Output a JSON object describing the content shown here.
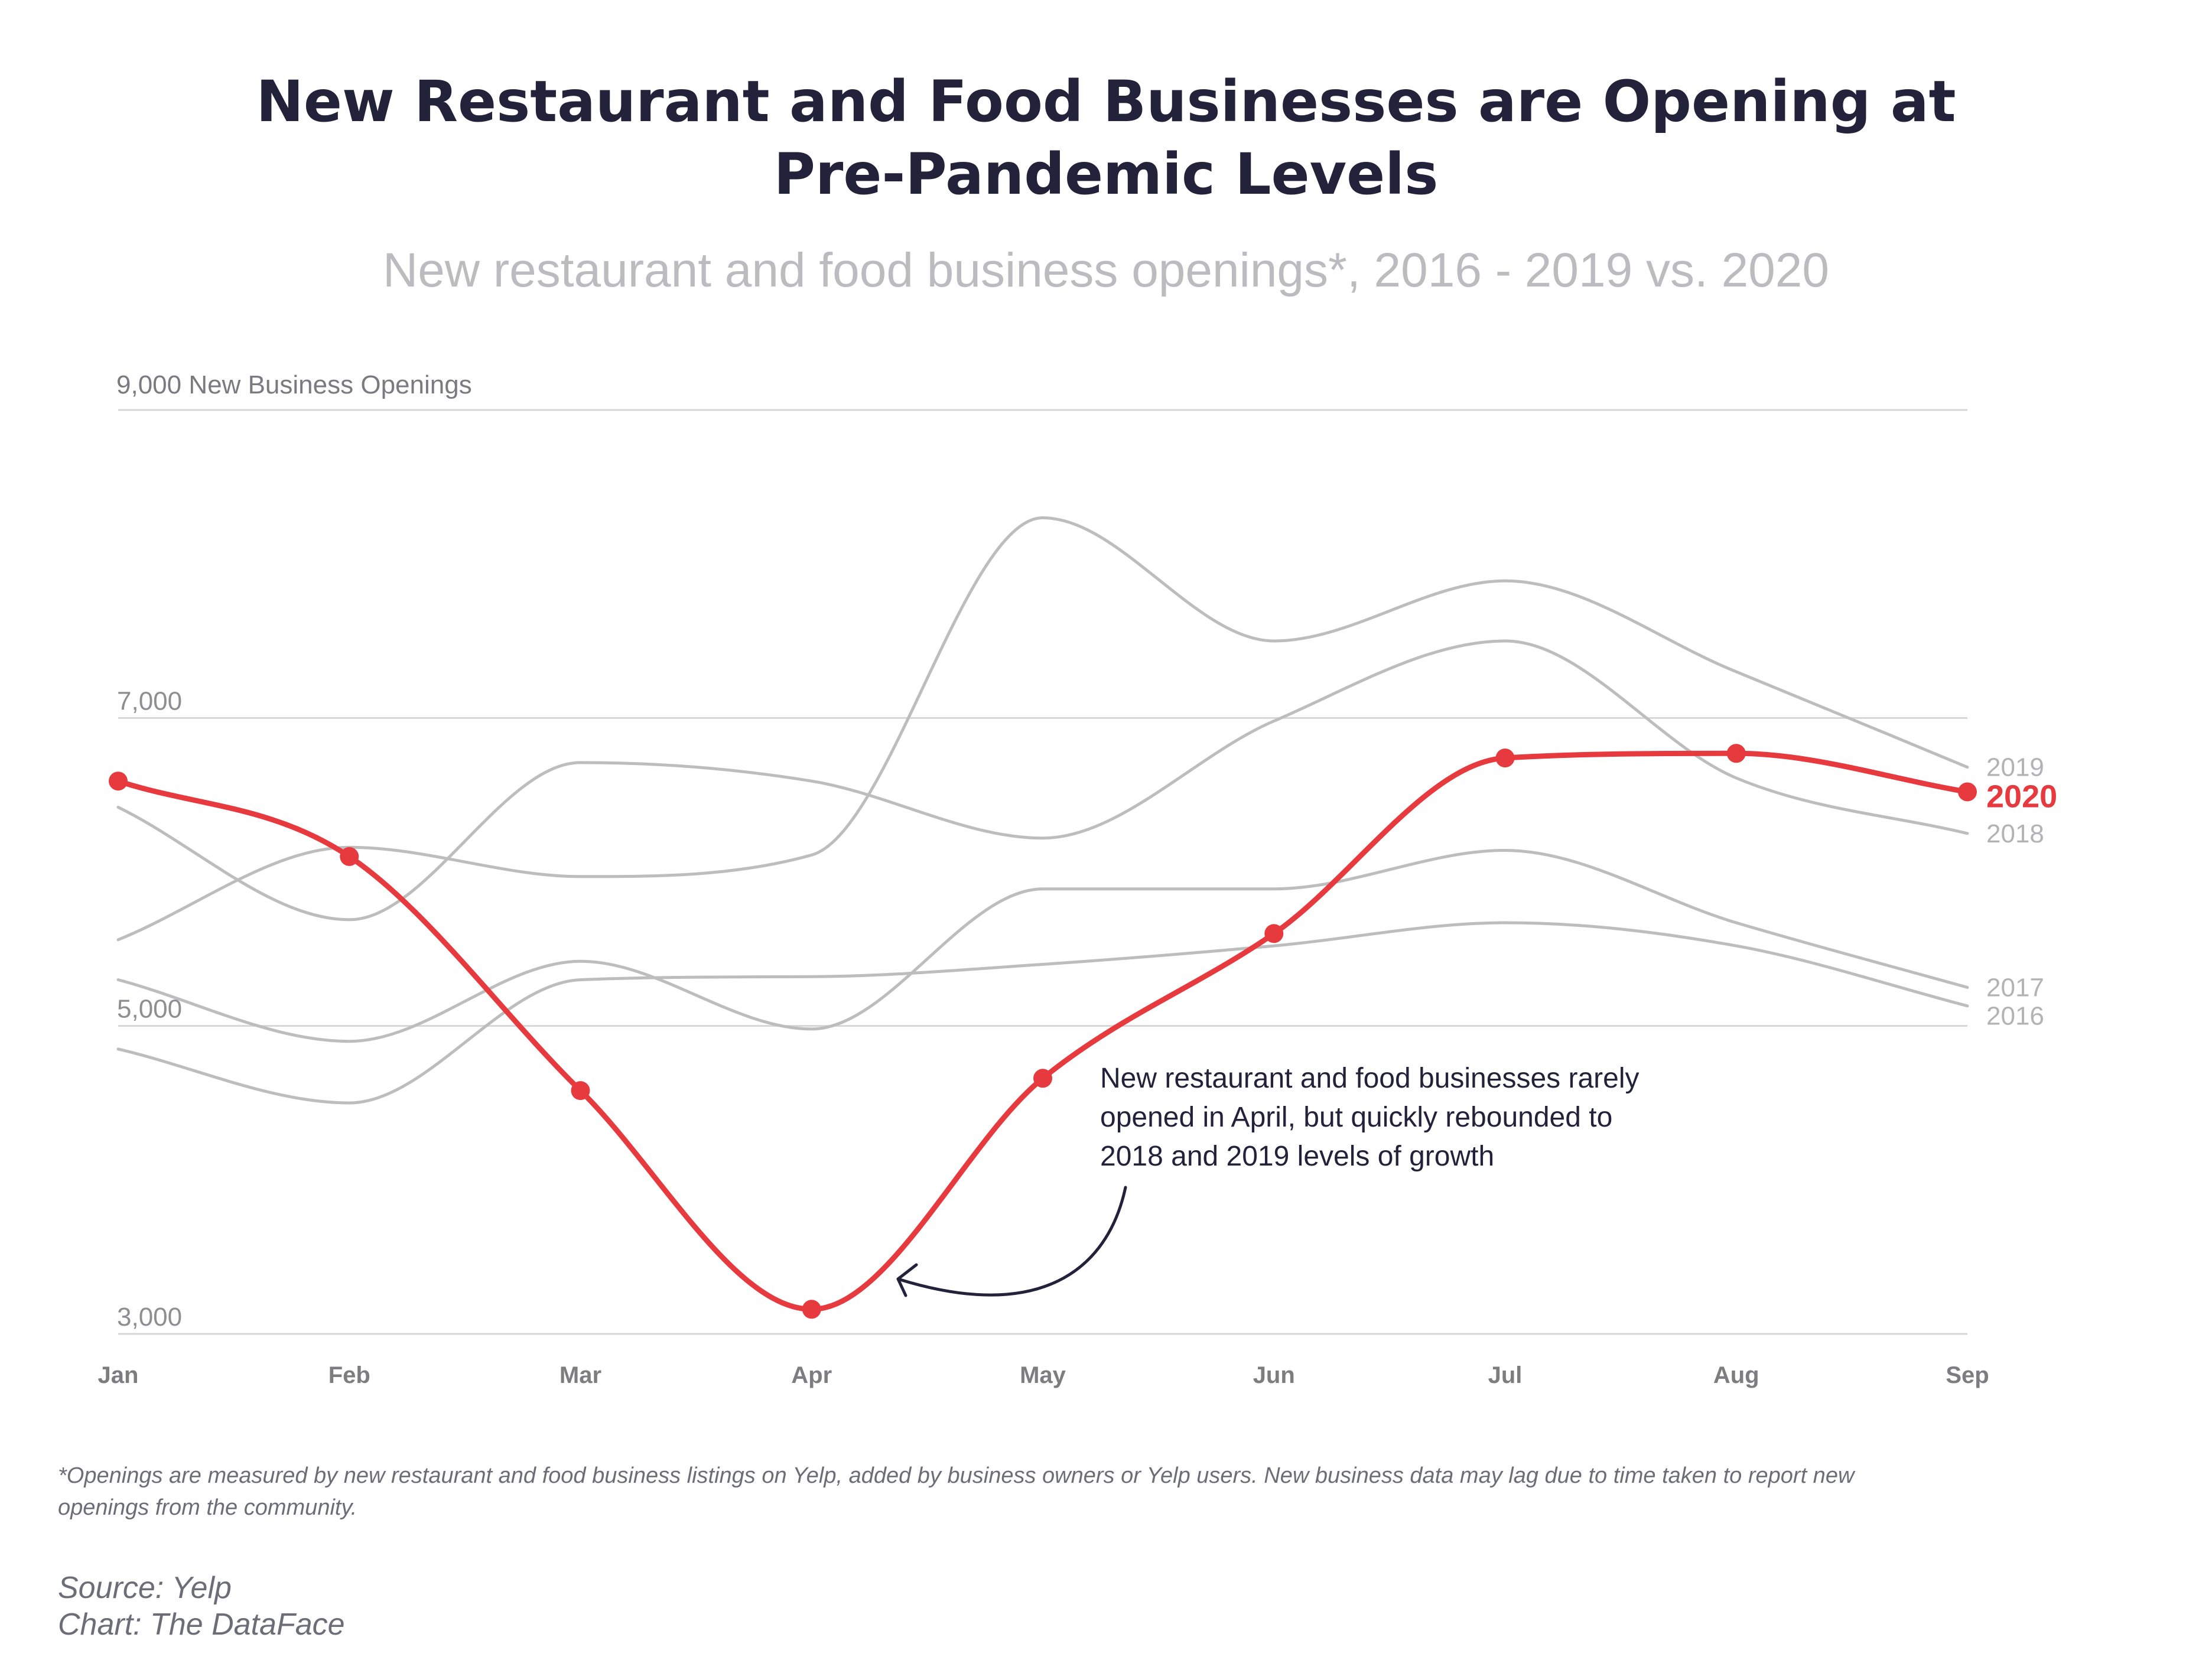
{
  "chart_data": {
    "type": "line",
    "title_lines": [
      "New Restaurant and Food Businesses are Opening at",
      "Pre-Pandemic Levels"
    ],
    "subtitle": "New restaurant and food business openings*, 2016 - 2019 vs. 2020",
    "y_unit_label": "9,000 New Business Openings",
    "ylim": [
      3000,
      9000
    ],
    "y_ticks": [
      3000,
      5000,
      7000,
      9000
    ],
    "y_tick_labels": [
      "3,000",
      "5,000",
      "7,000",
      ""
    ],
    "categories": [
      "Jan",
      "Feb",
      "Mar",
      "Apr",
      "May",
      "Jun",
      "Jul",
      "Aug",
      "Sep"
    ],
    "grid": true,
    "series": [
      {
        "name": "2016",
        "color": "#bdbdbd",
        "highlight": false,
        "values": [
          4850,
          4500,
          5300,
          5320,
          5400,
          5520,
          5670,
          5520,
          5130
        ]
      },
      {
        "name": "2017",
        "color": "#bdbdbd",
        "highlight": false,
        "values": [
          5300,
          4900,
          5420,
          4980,
          5890,
          5890,
          6140,
          5670,
          5250
        ]
      },
      {
        "name": "2018",
        "color": "#bdbdbd",
        "highlight": false,
        "values": [
          6420,
          5690,
          6710,
          6590,
          6220,
          6980,
          7500,
          6610,
          6250
        ]
      },
      {
        "name": "2019",
        "color": "#bdbdbd",
        "highlight": false,
        "values": [
          5560,
          6160,
          5970,
          6110,
          8300,
          7500,
          7890,
          7300,
          6680
        ]
      },
      {
        "name": "2020",
        "color": "#e63a3f",
        "highlight": true,
        "values": [
          6590,
          6100,
          4580,
          3160,
          4660,
          5600,
          6740,
          6770,
          6520
        ]
      }
    ],
    "annotation": {
      "lines": [
        "New restaurant and food businesses rarely",
        "opened in April, but quickly rebounded to",
        "2018 and 2019 levels of growth"
      ]
    }
  },
  "footnote": {
    "lines": [
      "*Openings are measured by new restaurant and food business listings on Yelp, added by business owners or Yelp users. New business data may lag due to time taken to report new",
      "openings from the community."
    ]
  },
  "source": {
    "lines": [
      "Source: Yelp",
      "Chart: The DataFace"
    ]
  }
}
